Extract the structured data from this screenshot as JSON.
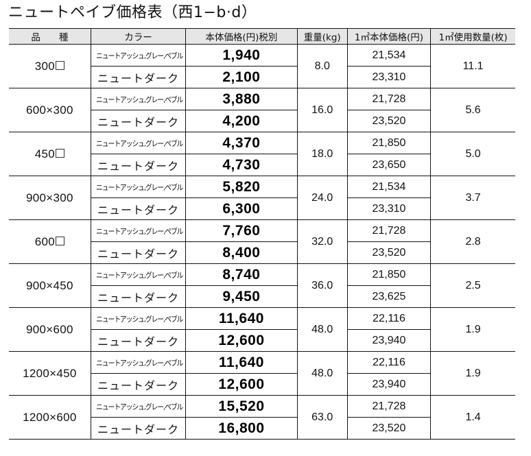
{
  "title": "ニュートペイブ価格表（西1−b·d）",
  "table": {
    "headers": {
      "size": "品　　種",
      "color": "カラー",
      "price": "本体価格(円)税別",
      "weight": "重量(kg)",
      "unit_price": "1㎡本体価格(円)",
      "qty": "1㎡使用数量(枚)"
    },
    "colors": {
      "light": "ニュートアッシュ,グレー,ペブル",
      "dark": "ニュートダーク"
    },
    "header_bg": "#e6e6e6",
    "rows": [
      {
        "size": "300",
        "square": true,
        "price_light": "1,940",
        "price_dark": "2,100",
        "weight": "8.0",
        "unit_light": "21,534",
        "unit_dark": "23,310",
        "qty": "11.1"
      },
      {
        "size": "600×300",
        "square": false,
        "price_light": "3,880",
        "price_dark": "4,200",
        "weight": "16.0",
        "unit_light": "21,728",
        "unit_dark": "23,520",
        "qty": "5.6"
      },
      {
        "size": "450",
        "square": true,
        "price_light": "4,370",
        "price_dark": "4,730",
        "weight": "18.0",
        "unit_light": "21,850",
        "unit_dark": "23,650",
        "qty": "5.0"
      },
      {
        "size": "900×300",
        "square": false,
        "price_light": "5,820",
        "price_dark": "6,300",
        "weight": "24.0",
        "unit_light": "21,534",
        "unit_dark": "23,310",
        "qty": "3.7"
      },
      {
        "size": "600",
        "square": true,
        "price_light": "7,760",
        "price_dark": "8,400",
        "weight": "32.0",
        "unit_light": "21,728",
        "unit_dark": "23,520",
        "qty": "2.8"
      },
      {
        "size": "900×450",
        "square": false,
        "price_light": "8,740",
        "price_dark": "9,450",
        "weight": "36.0",
        "unit_light": "21,850",
        "unit_dark": "23,625",
        "qty": "2.5"
      },
      {
        "size": "900×600",
        "square": false,
        "price_light": "11,640",
        "price_dark": "12,600",
        "weight": "48.0",
        "unit_light": "22,116",
        "unit_dark": "23,940",
        "qty": "1.9"
      },
      {
        "size": "1200×450",
        "square": false,
        "price_light": "11,640",
        "price_dark": "12,600",
        "weight": "48.0",
        "unit_light": "22,116",
        "unit_dark": "23,940",
        "qty": "1.9"
      },
      {
        "size": "1200×600",
        "square": false,
        "price_light": "15,520",
        "price_dark": "16,800",
        "weight": "63.0",
        "unit_light": "21,728",
        "unit_dark": "23,520",
        "qty": "1.4"
      }
    ]
  }
}
